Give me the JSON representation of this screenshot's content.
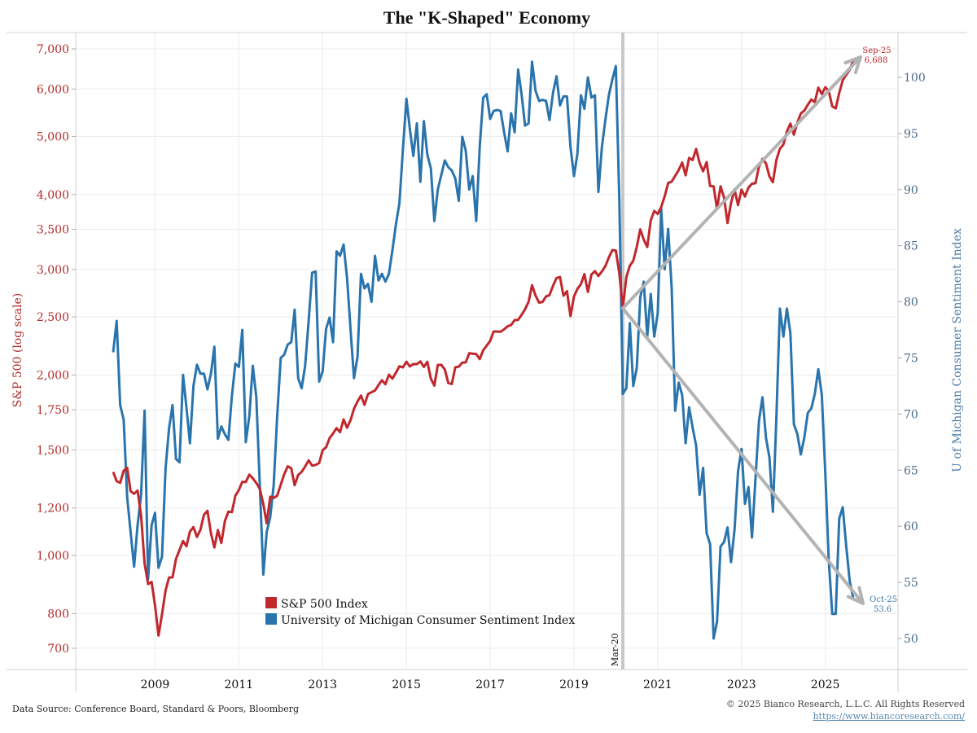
{
  "chart_data": {
    "type": "line",
    "title": "The \"K-Shaped\" Economy",
    "xlabel": "",
    "x_range": [
      "2008-01",
      "2025-10"
    ],
    "x_ticks": [
      "2009",
      "2011",
      "2013",
      "2015",
      "2017",
      "2019",
      "2021",
      "2023",
      "2025"
    ],
    "grid": true,
    "legend_position": "bottom-center-left",
    "y_left": {
      "label": "S&P 500 (log scale)",
      "scale": "log",
      "range": [
        650,
        7300
      ],
      "ticks": [
        "700",
        "800",
        "1,000",
        "1,200",
        "1,500",
        "1,750",
        "2,000",
        "2,500",
        "3,000",
        "3,500",
        "4,000",
        "5,000",
        "6,000",
        "7,000"
      ],
      "tick_values": [
        700,
        800,
        1000,
        1200,
        1500,
        1750,
        2000,
        2500,
        3000,
        3500,
        4000,
        5000,
        6000,
        7000
      ],
      "color": "#c0282d"
    },
    "y_right": {
      "label": "U of Michigan Consumer Sentiment Index",
      "scale": "linear",
      "range": [
        47.3,
        104.1
      ],
      "ticks": [
        "50",
        "55",
        "60",
        "65",
        "70",
        "75",
        "80",
        "85",
        "90",
        "95",
        "100"
      ],
      "tick_values": [
        50,
        55,
        60,
        65,
        70,
        75,
        80,
        85,
        90,
        95,
        100
      ],
      "color": "#2a74ad"
    },
    "series": [
      {
        "name": "S&P 500 Index",
        "axis": "left",
        "color": "#c0282d",
        "start": "2008-01",
        "frequency": "monthly",
        "values": [
          1378,
          1330,
          1322,
          1385,
          1400,
          1280,
          1267,
          1283,
          1165,
          969,
          896,
          903,
          826,
          735,
          798,
          873,
          919,
          919,
          987,
          1021,
          1057,
          1036,
          1096,
          1115,
          1074,
          1104,
          1169,
          1187,
          1089,
          1031,
          1102,
          1049,
          1141,
          1183,
          1181,
          1258,
          1286,
          1327,
          1326,
          1364,
          1345,
          1321,
          1292,
          1219,
          1131,
          1253,
          1247,
          1258,
          1312,
          1366,
          1408,
          1398,
          1310,
          1362,
          1379,
          1407,
          1441,
          1412,
          1416,
          1426,
          1498,
          1515,
          1569,
          1598,
          1631,
          1606,
          1686,
          1633,
          1682,
          1757,
          1806,
          1848,
          1783,
          1859,
          1872,
          1884,
          1924,
          1960,
          1931,
          2003,
          1972,
          2018,
          2068,
          2059,
          2104,
          2067,
          2086,
          2085,
          2107,
          2063,
          2104,
          1972,
          1920,
          2079,
          2080,
          2044,
          1940,
          1932,
          2060,
          2065,
          2097,
          2099,
          2174,
          2171,
          2168,
          2126,
          2199,
          2239,
          2279,
          2364,
          2363,
          2362,
          2384,
          2411,
          2424,
          2470,
          2472,
          2519,
          2575,
          2648,
          2824,
          2714,
          2641,
          2648,
          2705,
          2718,
          2816,
          2902,
          2914,
          2712,
          2760,
          2507,
          2704,
          2784,
          2834,
          2946,
          2752,
          2942,
          2980,
          2926,
          2977,
          3038,
          3141,
          3231,
          3226,
          2954,
          2585,
          2912,
          3044,
          3100,
          3271,
          3500,
          3363,
          3270,
          3622,
          3756,
          3714,
          3811,
          3973,
          4181,
          4204,
          4298,
          4395,
          4523,
          4307,
          4605,
          4567,
          4766,
          4516,
          4374,
          4530,
          4132,
          4130,
          3785,
          4130,
          3955,
          3586,
          3872,
          4080,
          3840,
          4077,
          3970,
          4109,
          4169,
          4179,
          4450,
          4589,
          4507,
          4288,
          4194,
          4568,
          4770,
          4846,
          5096,
          5254,
          5036,
          5278,
          5460,
          5522,
          5648,
          5762,
          5705,
          6032,
          5882,
          6041,
          5955,
          5612,
          5569,
          5912,
          6205,
          6339,
          6460,
          6688
        ]
      },
      {
        "name": "University of Michigan Consumer Sentiment Index",
        "axis": "right",
        "color": "#2a74ad",
        "start": "2008-01",
        "frequency": "monthly",
        "values": [
          75.5,
          78.3,
          70.8,
          69.5,
          62.6,
          59.5,
          56.4,
          60.1,
          62.8,
          70.3,
          55.3,
          60.1,
          61.2,
          56.3,
          57.3,
          65.1,
          68.7,
          70.8,
          66.0,
          65.7,
          73.5,
          70.6,
          67.4,
          72.5,
          74.4,
          73.6,
          73.6,
          72.2,
          73.6,
          76.0,
          67.8,
          68.9,
          68.2,
          67.7,
          71.6,
          74.5,
          74.2,
          77.5,
          67.5,
          69.8,
          74.3,
          71.5,
          63.7,
          55.7,
          59.5,
          60.8,
          63.7,
          69.9,
          75.0,
          75.3,
          76.2,
          76.4,
          79.3,
          73.2,
          72.3,
          74.3,
          78.3,
          82.6,
          82.7,
          72.9,
          73.8,
          77.6,
          78.6,
          76.4,
          84.5,
          84.1,
          85.1,
          82.1,
          77.5,
          73.2,
          75.1,
          82.5,
          81.2,
          81.6,
          80.0,
          84.1,
          81.9,
          82.5,
          81.8,
          82.5,
          84.6,
          86.9,
          88.8,
          93.6,
          98.1,
          95.4,
          93.0,
          95.9,
          90.7,
          96.1,
          93.1,
          91.9,
          87.2,
          90.0,
          91.3,
          92.6,
          92.0,
          91.7,
          91.0,
          89.0,
          94.7,
          93.5,
          90.0,
          91.2,
          87.2,
          93.8,
          98.2,
          98.5,
          96.3,
          97.0,
          97.1,
          97.0,
          95.1,
          93.4,
          96.8,
          95.1,
          100.7,
          98.5,
          95.7,
          95.9,
          101.4,
          98.8,
          97.9,
          98.0,
          97.9,
          96.2,
          98.6,
          100.1,
          97.5,
          98.3,
          98.3,
          93.8,
          91.2,
          93.2,
          98.4,
          97.2,
          100.0,
          98.2,
          98.4,
          89.8,
          93.8,
          96.2,
          98.4,
          99.8,
          101.0,
          89.1,
          71.8,
          72.3,
          78.1,
          72.5,
          74.1,
          80.4,
          81.8,
          76.9,
          80.7,
          76.9,
          79.0,
          88.3,
          82.9,
          86.5,
          81.2,
          70.3,
          72.8,
          71.7,
          67.4,
          70.6,
          68.8,
          67.2,
          62.8,
          65.2,
          59.4,
          58.4,
          50.0,
          51.5,
          58.2,
          58.6,
          59.9,
          56.8,
          59.7,
          64.9,
          66.9,
          62.0,
          63.5,
          59.0,
          64.2,
          69.4,
          71.5,
          67.9,
          66.1,
          61.3,
          69.7,
          79.4,
          76.9,
          79.4,
          77.2,
          69.1,
          68.2,
          66.4,
          67.9,
          70.1,
          70.5,
          71.8,
          74.0,
          71.7,
          64.7,
          57.0,
          52.2,
          52.2,
          60.7,
          61.7,
          58.2,
          55.1,
          53.6
        ]
      }
    ],
    "annotations": [
      {
        "label": "Mar-20",
        "type": "vertical-line",
        "x": "2020-03"
      },
      {
        "label": "Sep-25",
        "value_label": "6,688",
        "series": "S&P 500 Index",
        "x": "2025-09"
      },
      {
        "label": "Oct-25",
        "value_label": "53.6",
        "series": "University of Michigan Consumer Sentiment Index",
        "x": "2025-10"
      },
      {
        "label": "K arrows",
        "type": "arrows",
        "from": "2020-03",
        "up_to": "2025-10",
        "down_to": "2025-10"
      }
    ]
  },
  "footer": {
    "source": "Data Source: Conference Board, Standard & Poors, Bloomberg",
    "copyright": "© 2025 Bianco Research, L.L.C. All Rights Reserved",
    "url": "https://www.biancoresearch.com/"
  }
}
